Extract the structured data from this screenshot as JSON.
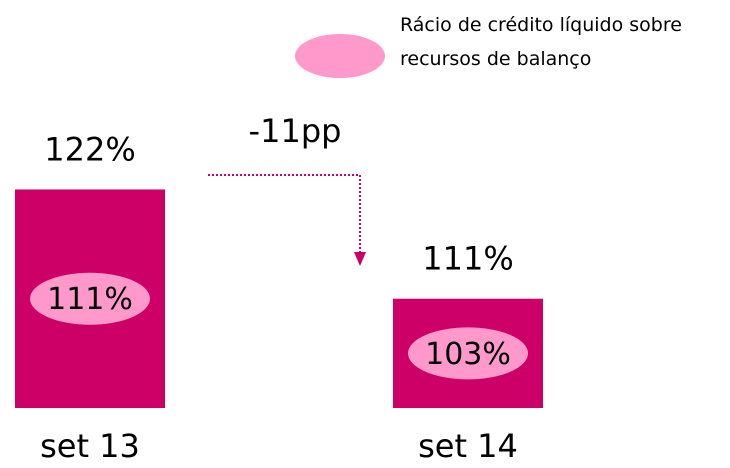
{
  "chart_data": {
    "type": "bar",
    "categories": [
      "set 13",
      "set 14"
    ],
    "series": [
      {
        "color": "#cc0066",
        "values": [
          122,
          111
        ],
        "value_labels": [
          "122%",
          "111%"
        ]
      },
      {
        "name": "Rácio de crédito líquido sobre recursos de balanço",
        "color": "#ff99cc",
        "values": [
          111,
          103
        ],
        "value_labels": [
          "111%",
          "103%"
        ]
      }
    ],
    "annotations": [
      {
        "text": "-11pp"
      }
    ],
    "ylim": [
      100,
      130
    ],
    "legend": "top-right"
  }
}
